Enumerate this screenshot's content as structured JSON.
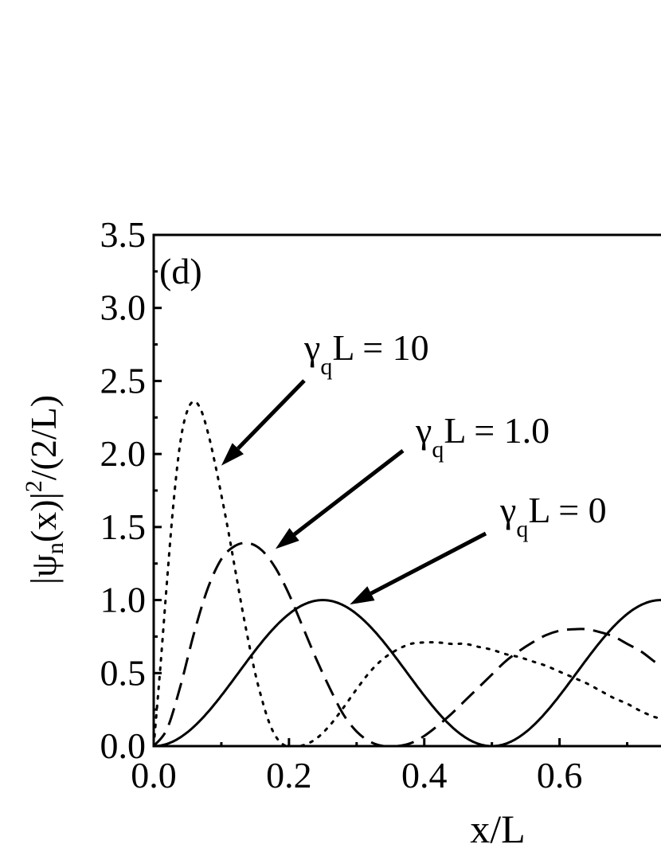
{
  "chart_data": {
    "type": "line",
    "panel_label": "(d)",
    "xlabel": "x/L",
    "ylabel": {
      "bar_left": "|",
      "psi": "ψ",
      "psi_sub": "n",
      "mid": "(x)|",
      "sup": "2",
      "tail": "/(2/L)"
    },
    "xlim": [
      0.0,
      0.75
    ],
    "ylim": [
      0.0,
      3.5
    ],
    "x_ticks": [
      0.0,
      0.2,
      0.4,
      0.6
    ],
    "x_tick_labels": [
      "0.0",
      "0.2",
      "0.4",
      "0.6"
    ],
    "y_ticks": [
      0.0,
      0.5,
      1.0,
      1.5,
      2.0,
      2.5,
      3.0,
      3.5
    ],
    "y_tick_labels": [
      "0.0",
      "0.5",
      "1.0",
      "1.5",
      "2.0",
      "2.5",
      "3.0",
      "3.5"
    ],
    "grid": false,
    "series": [
      {
        "style": "dotted",
        "x": [
          0.0,
          0.01,
          0.02,
          0.03,
          0.04,
          0.05,
          0.06,
          0.07,
          0.08,
          0.09,
          0.1,
          0.11,
          0.12,
          0.13,
          0.14,
          0.15,
          0.16,
          0.17,
          0.18,
          0.19,
          0.2,
          0.22,
          0.24,
          0.26,
          0.28,
          0.3,
          0.32,
          0.34,
          0.36,
          0.38,
          0.4,
          0.42,
          0.44,
          0.46,
          0.48,
          0.5,
          0.52,
          0.54,
          0.56,
          0.58,
          0.6,
          0.62,
          0.64,
          0.66,
          0.68,
          0.7,
          0.72,
          0.74,
          0.75
        ],
        "y": [
          0.0,
          0.55,
          1.15,
          1.7,
          2.1,
          2.3,
          2.36,
          2.3,
          2.15,
          1.95,
          1.72,
          1.48,
          1.22,
          0.96,
          0.72,
          0.5,
          0.32,
          0.17,
          0.07,
          0.015,
          0.0,
          0.005,
          0.05,
          0.14,
          0.26,
          0.39,
          0.51,
          0.6,
          0.66,
          0.7,
          0.71,
          0.71,
          0.7,
          0.7,
          0.68,
          0.66,
          0.63,
          0.61,
          0.58,
          0.55,
          0.51,
          0.47,
          0.43,
          0.38,
          0.33,
          0.29,
          0.24,
          0.2,
          0.19
        ]
      },
      {
        "style": "dashed",
        "x": [
          0.0,
          0.02,
          0.04,
          0.06,
          0.08,
          0.1,
          0.12,
          0.14,
          0.16,
          0.18,
          0.2,
          0.22,
          0.24,
          0.26,
          0.28,
          0.3,
          0.32,
          0.34,
          0.36,
          0.38,
          0.4,
          0.42,
          0.44,
          0.46,
          0.48,
          0.5,
          0.52,
          0.54,
          0.56,
          0.58,
          0.6,
          0.62,
          0.64,
          0.66,
          0.68,
          0.7,
          0.72,
          0.74,
          0.75
        ],
        "y": [
          0.0,
          0.12,
          0.42,
          0.78,
          1.08,
          1.28,
          1.37,
          1.39,
          1.34,
          1.22,
          1.04,
          0.82,
          0.6,
          0.4,
          0.22,
          0.1,
          0.03,
          0.0,
          0.0,
          0.02,
          0.07,
          0.14,
          0.22,
          0.31,
          0.4,
          0.49,
          0.58,
          0.65,
          0.71,
          0.76,
          0.79,
          0.8,
          0.8,
          0.78,
          0.75,
          0.7,
          0.65,
          0.58,
          0.55
        ]
      },
      {
        "style": "solid",
        "function": "sin^2(2*pi*x)"
      }
    ],
    "annotations": [
      {
        "label_main": "γ",
        "label_sub": "q",
        "label_rest": "L = 10",
        "tip_x": 0.1,
        "tip_y": 1.92
      },
      {
        "label_main": "γ",
        "label_sub": "q",
        "label_rest": "L = 1.0",
        "tip_x": 0.18,
        "tip_y": 1.35
      },
      {
        "label_main": "γ",
        "label_sub": "q",
        "label_rest": "L = 0",
        "tip_x": 0.29,
        "tip_y": 0.97
      }
    ]
  }
}
